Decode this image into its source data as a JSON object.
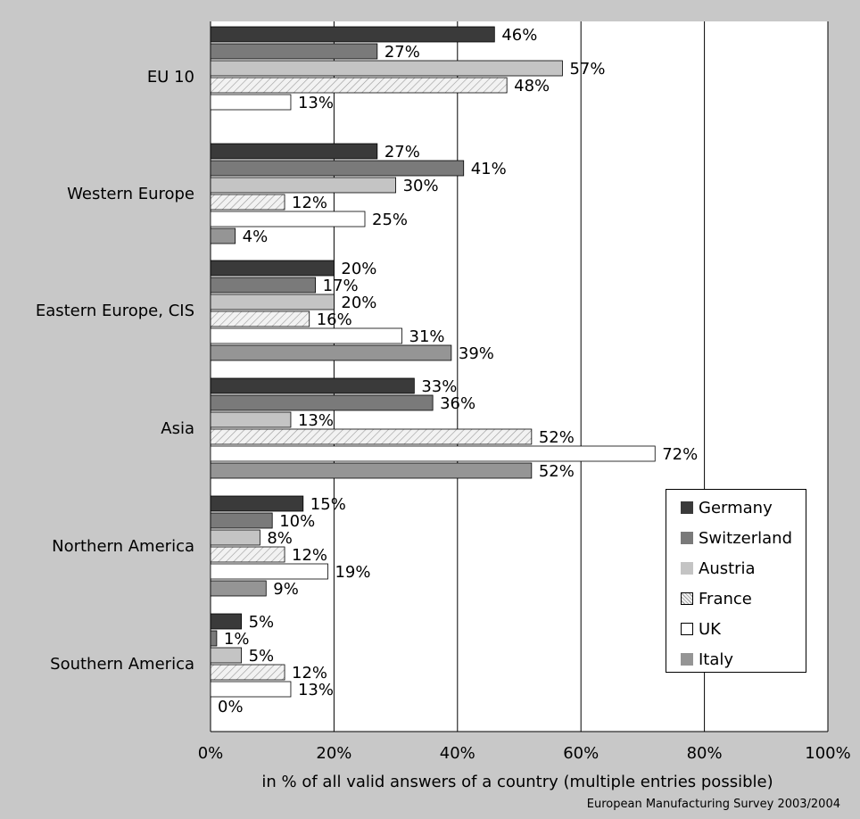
{
  "chart_data": {
    "type": "bar",
    "orientation": "horizontal",
    "categories": [
      "EU 10",
      "Western Europe",
      "Eastern Europe, CIS",
      "Asia",
      "Northern America",
      "Southern America"
    ],
    "series": [
      {
        "name": "Germany",
        "color": "#3a3a3a",
        "values": [
          46,
          27,
          20,
          33,
          15,
          5
        ]
      },
      {
        "name": "Switzerland",
        "color": "#7a7a7a",
        "values": [
          27,
          41,
          17,
          36,
          10,
          1
        ]
      },
      {
        "name": "Austria",
        "color": "#c4c4c4",
        "values": [
          57,
          30,
          20,
          13,
          8,
          5
        ]
      },
      {
        "name": "France",
        "color": "#e8e8e8",
        "pattern": "hatched",
        "values": [
          48,
          12,
          16,
          52,
          12,
          12
        ]
      },
      {
        "name": "UK",
        "color": "#ffffff",
        "values": [
          13,
          25,
          31,
          72,
          19,
          13
        ]
      },
      {
        "name": "Italy",
        "color": "#959595",
        "values": [
          null,
          4,
          39,
          52,
          9,
          0
        ]
      }
    ],
    "data_labels": [
      [
        "46%",
        "27%",
        "57%",
        "48%",
        "13%",
        ""
      ],
      [
        "27%",
        "41%",
        "30%",
        "12%",
        "25%",
        "4%"
      ],
      [
        "20%",
        "17%",
        "20%",
        "16%",
        "31%",
        "39%"
      ],
      [
        "33%",
        "36%",
        "13%",
        "52%",
        "72%",
        "52%"
      ],
      [
        "15%",
        "10%",
        "8%",
        "12%",
        "19%",
        "9%"
      ],
      [
        "5%",
        "1%",
        "5%",
        "12%",
        "13%",
        "0%"
      ]
    ],
    "xlim": [
      0,
      100
    ],
    "xticks": [
      0,
      20,
      40,
      60,
      80,
      100
    ],
    "xtick_labels": [
      "0%",
      "20%",
      "40%",
      "60%",
      "80%",
      "100%"
    ],
    "xlabel": "in % of all valid answers of a country (multiple entries possible)",
    "grid": "vertical",
    "legend_position": "bottom-right",
    "source": "European Manufacturing Survey 2003/2004"
  }
}
